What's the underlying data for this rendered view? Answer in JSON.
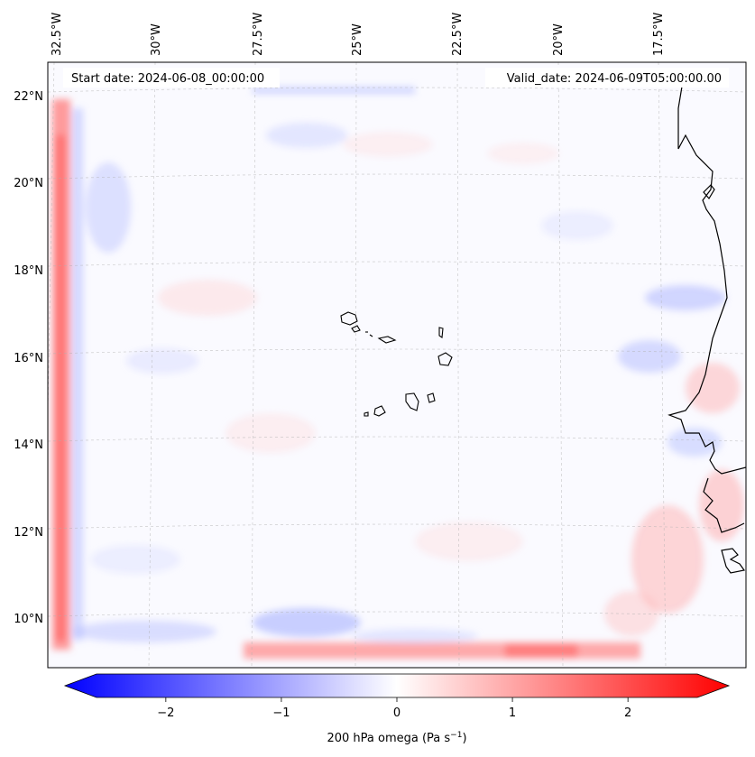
{
  "header": {
    "start_date": "Start date: 2024-06-08_00:00:00",
    "valid_date": "Valid_date: 2024-06-09T05:00:00.00"
  },
  "map": {
    "lon_labels": [
      "32.5°W",
      "30°W",
      "27.5°W",
      "25°W",
      "22.5°W",
      "20°W",
      "17.5°W"
    ],
    "lat_labels": [
      "22°N",
      "20°N",
      "18°N",
      "16°N",
      "14°N",
      "12°N",
      "10°N"
    ],
    "colors": {
      "positive": "#ff0000",
      "negative": "#0000ff",
      "neutral": "#ffffff",
      "coastline": "#000000",
      "gridline": "#b0b0b0"
    }
  },
  "colorbar": {
    "title": "200 hPa omega (Pa s",
    "title_exp": "−1",
    "title_close": ")",
    "range": [
      -2.6,
      2.6
    ],
    "tick_values": [
      -2,
      -1,
      0,
      1,
      2
    ],
    "tick_labels": [
      "−2",
      "−1",
      "0",
      "1",
      "2"
    ],
    "colors": {
      "min": "#0000ff",
      "mid": "#ffffff",
      "max": "#ff0000"
    }
  }
}
